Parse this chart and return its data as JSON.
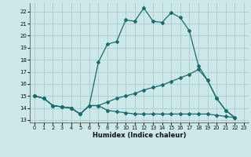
{
  "title": "",
  "xlabel": "Humidex (Indice chaleur)",
  "background_color": "#cce8e8",
  "grid_color": "#aacccc",
  "line_color": "#1a6b6b",
  "xlim": [
    -0.5,
    23.5
  ],
  "ylim": [
    12.8,
    22.7
  ],
  "yticks": [
    13,
    14,
    15,
    16,
    17,
    18,
    19,
    20,
    21,
    22
  ],
  "xticks": [
    0,
    1,
    2,
    3,
    4,
    5,
    6,
    7,
    8,
    9,
    10,
    11,
    12,
    13,
    14,
    15,
    16,
    17,
    18,
    19,
    20,
    21,
    22,
    23
  ],
  "series": [
    [
      15.0,
      14.8,
      14.2,
      14.1,
      14.0,
      13.5,
      14.2,
      17.8,
      19.3,
      19.5,
      21.3,
      21.2,
      22.3,
      21.2,
      21.1,
      21.9,
      21.5,
      20.4,
      17.5,
      16.3,
      14.8,
      13.8,
      13.2
    ],
    [
      15.0,
      14.8,
      14.2,
      14.1,
      14.0,
      13.5,
      14.2,
      14.2,
      14.5,
      14.8,
      15.0,
      15.2,
      15.5,
      15.7,
      15.9,
      16.2,
      16.5,
      16.8,
      17.2,
      16.3,
      14.8,
      13.8,
      13.2
    ],
    [
      15.0,
      14.8,
      14.2,
      14.1,
      14.0,
      13.5,
      14.2,
      14.2,
      13.8,
      13.7,
      13.6,
      13.5,
      13.5,
      13.5,
      13.5,
      13.5,
      13.5,
      13.5,
      13.5,
      13.5,
      13.4,
      13.3,
      13.2
    ]
  ],
  "x_values": [
    0,
    1,
    2,
    3,
    4,
    5,
    6,
    7,
    8,
    9,
    10,
    11,
    12,
    13,
    14,
    15,
    16,
    17,
    18,
    19,
    20,
    21,
    22
  ]
}
